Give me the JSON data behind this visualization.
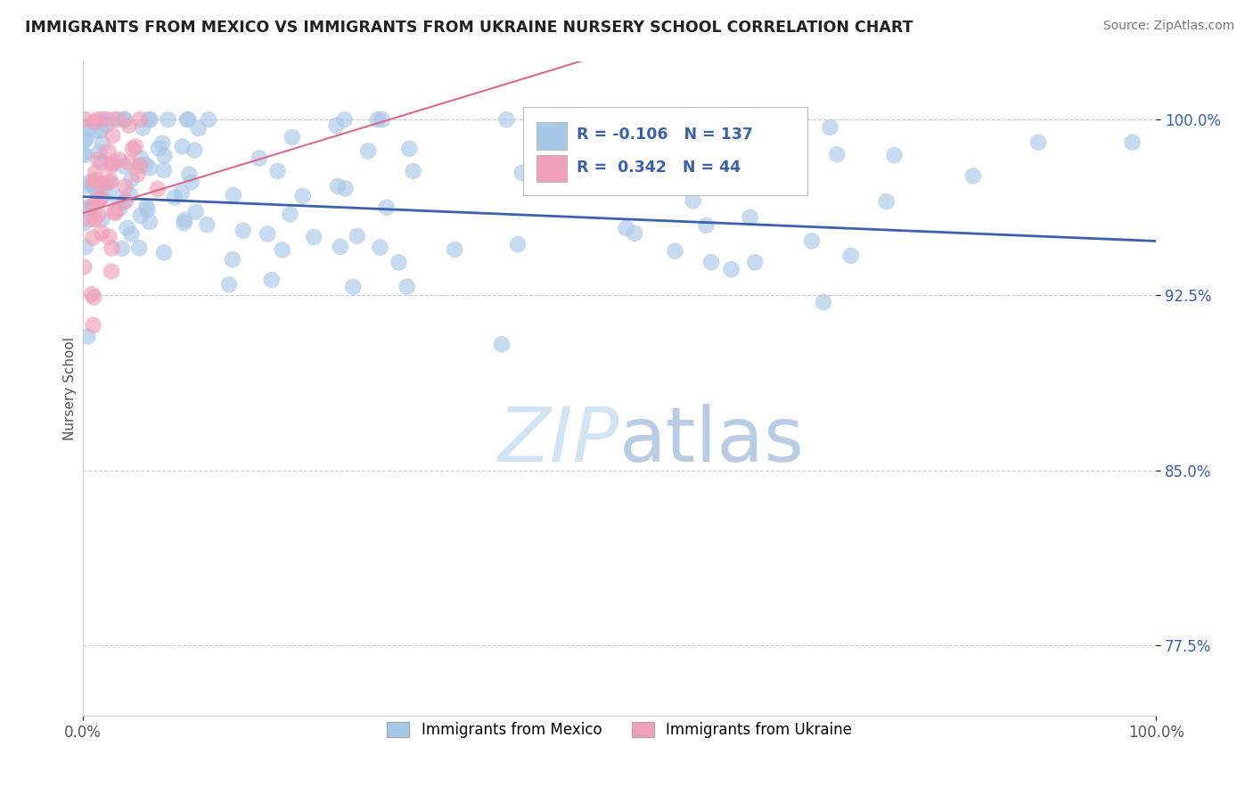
{
  "title": "IMMIGRANTS FROM MEXICO VS IMMIGRANTS FROM UKRAINE NURSERY SCHOOL CORRELATION CHART",
  "source": "Source: ZipAtlas.com",
  "ylabel": "Nursery School",
  "xlim": [
    0.0,
    1.0
  ],
  "ylim": [
    0.745,
    1.025
  ],
  "yticks": [
    0.775,
    0.85,
    0.925,
    1.0
  ],
  "ytick_labels": [
    "77.5%",
    "85.0%",
    "92.5%",
    "100.0%"
  ],
  "xtick_labels": [
    "0.0%",
    "100.0%"
  ],
  "xticks": [
    0.0,
    1.0
  ],
  "mexico_color": "#a8c8e8",
  "ukraine_color": "#f0a0b8",
  "mexico_line_color": "#3a60b0",
  "ukraine_line_color": "#e06888",
  "mexico_R": -0.106,
  "mexico_N": 137,
  "ukraine_R": 0.342,
  "ukraine_N": 44,
  "background_color": "#ffffff",
  "legend_label_mexico": "Immigrants from Mexico",
  "legend_label_ukraine": "Immigrants from Ukraine",
  "watermark_color": "#d0e4f4"
}
